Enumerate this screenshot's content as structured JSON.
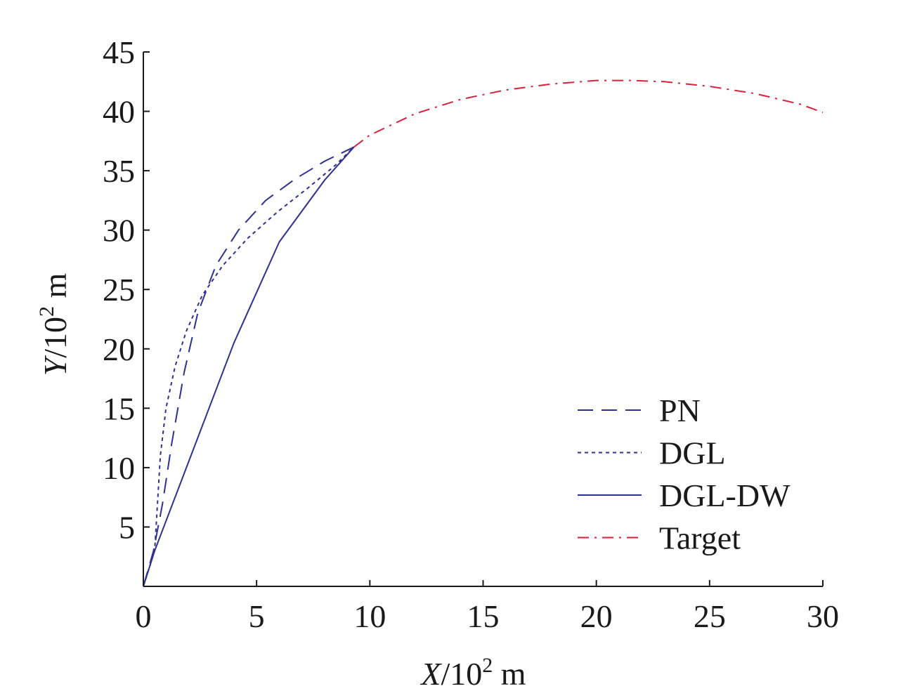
{
  "chart_data": {
    "type": "line",
    "xlabel": {
      "var": "X",
      "rest": "/10",
      "sup": "2",
      "unit": " m"
    },
    "ylabel": {
      "var": "Y",
      "rest": "/10",
      "sup": "2",
      "unit": " m"
    },
    "xlim": [
      0,
      30
    ],
    "ylim": [
      0,
      45
    ],
    "xticks": [
      0,
      5,
      10,
      15,
      20,
      25,
      30
    ],
    "yticks": [
      5,
      10,
      15,
      20,
      25,
      30,
      35,
      40,
      45
    ],
    "grid": false,
    "legend_position": "bottom-right",
    "series": [
      {
        "name": "PN",
        "color": "#2e3192",
        "dash": "dashed",
        "x": [
          0,
          0.45,
          0.85,
          1.25,
          1.8,
          2.4,
          3.2,
          4.2,
          5.4,
          6.7,
          8.0,
          9.3
        ],
        "y": [
          0,
          3.0,
          7.0,
          12.0,
          18.0,
          23.0,
          27.0,
          30.0,
          32.5,
          34.3,
          35.8,
          37.0
        ]
      },
      {
        "name": "DGL",
        "color": "#2e3192",
        "dash": "dotted",
        "x": [
          0,
          0.5,
          0.75,
          1.0,
          1.4,
          1.9,
          2.6,
          3.5,
          4.6,
          5.9,
          7.3,
          8.5,
          9.3
        ],
        "y": [
          0,
          3.0,
          11.0,
          15.0,
          18.5,
          21.5,
          24.5,
          27.0,
          29.3,
          31.5,
          33.6,
          35.5,
          37.0
        ]
      },
      {
        "name": "DGL-DW",
        "color": "#2e3192",
        "dash": "solid",
        "x": [
          0,
          0.5,
          2.0,
          4.0,
          6.0,
          8.0,
          9.3
        ],
        "y": [
          0,
          3.0,
          10.5,
          20.5,
          29.0,
          34.2,
          37.0
        ]
      },
      {
        "name": "Target",
        "color": "#d6223a",
        "dash": "dashdot",
        "x": [
          9.3,
          10,
          12,
          14,
          16,
          18,
          20,
          21.5,
          23,
          25,
          27,
          29,
          30
        ],
        "y": [
          37.0,
          38.0,
          39.8,
          41.0,
          41.8,
          42.3,
          42.6,
          42.6,
          42.5,
          42.1,
          41.5,
          40.6,
          39.9
        ]
      }
    ]
  }
}
